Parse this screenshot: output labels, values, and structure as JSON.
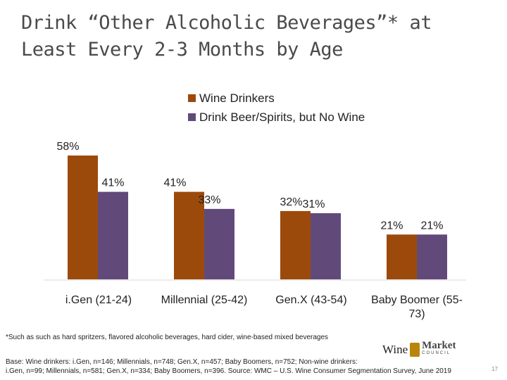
{
  "title": "Drink “Other Alcoholic Beverages”* at Least Every 2-3 Months by Age",
  "legend": {
    "items": [
      {
        "label": "Wine Drinkers",
        "color": "#9c4a0c"
      },
      {
        "label": "Drink Beer/Spirits, but No Wine",
        "color": "#614a7a"
      }
    ]
  },
  "chart_data": {
    "type": "bar",
    "title": "Drink “Other Alcoholic Beverages”* at Least Every 2-3 Months by Age",
    "categories": [
      "i.Gen (21-24)",
      "Millennial (25-42)",
      "Gen.X (43-54)",
      "Baby Boomer (55-73)"
    ],
    "series": [
      {
        "name": "Wine Drinkers",
        "values": [
          58,
          41,
          32,
          21
        ],
        "labels": [
          "58%",
          "41%",
          "32%",
          "21%"
        ],
        "color": "#9c4a0c"
      },
      {
        "name": "Drink Beer/Spirits, but No Wine",
        "values": [
          41,
          33,
          31,
          21
        ],
        "labels": [
          "41%",
          "33%",
          "31%",
          "21%"
        ],
        "color": "#614a7a"
      }
    ],
    "ylim": [
      0,
      58
    ],
    "xlabel": "",
    "ylabel": "",
    "legend_position": "top"
  },
  "footnote": "*Such as such as hard spritzers, flavored alcoholic beverages, hard cider, wine-based mixed beverages",
  "base_note": {
    "line1": "Base: Wine drinkers: i.Gen, n=146; Millennials, n=748; Gen.X, n=457; Baby Boomers, n=752; Non-wine drinkers:",
    "line2": "i.Gen, n=99; Millennials, n=581; Gen.X, n=334; Baby Boomers, n=396. Source: WMC – U.S. Wine Consumer Segmentation Survey, June 2019"
  },
  "logo": {
    "wine": "Wine",
    "market": "Market",
    "council": "COUNCIL"
  },
  "page_number": "17"
}
